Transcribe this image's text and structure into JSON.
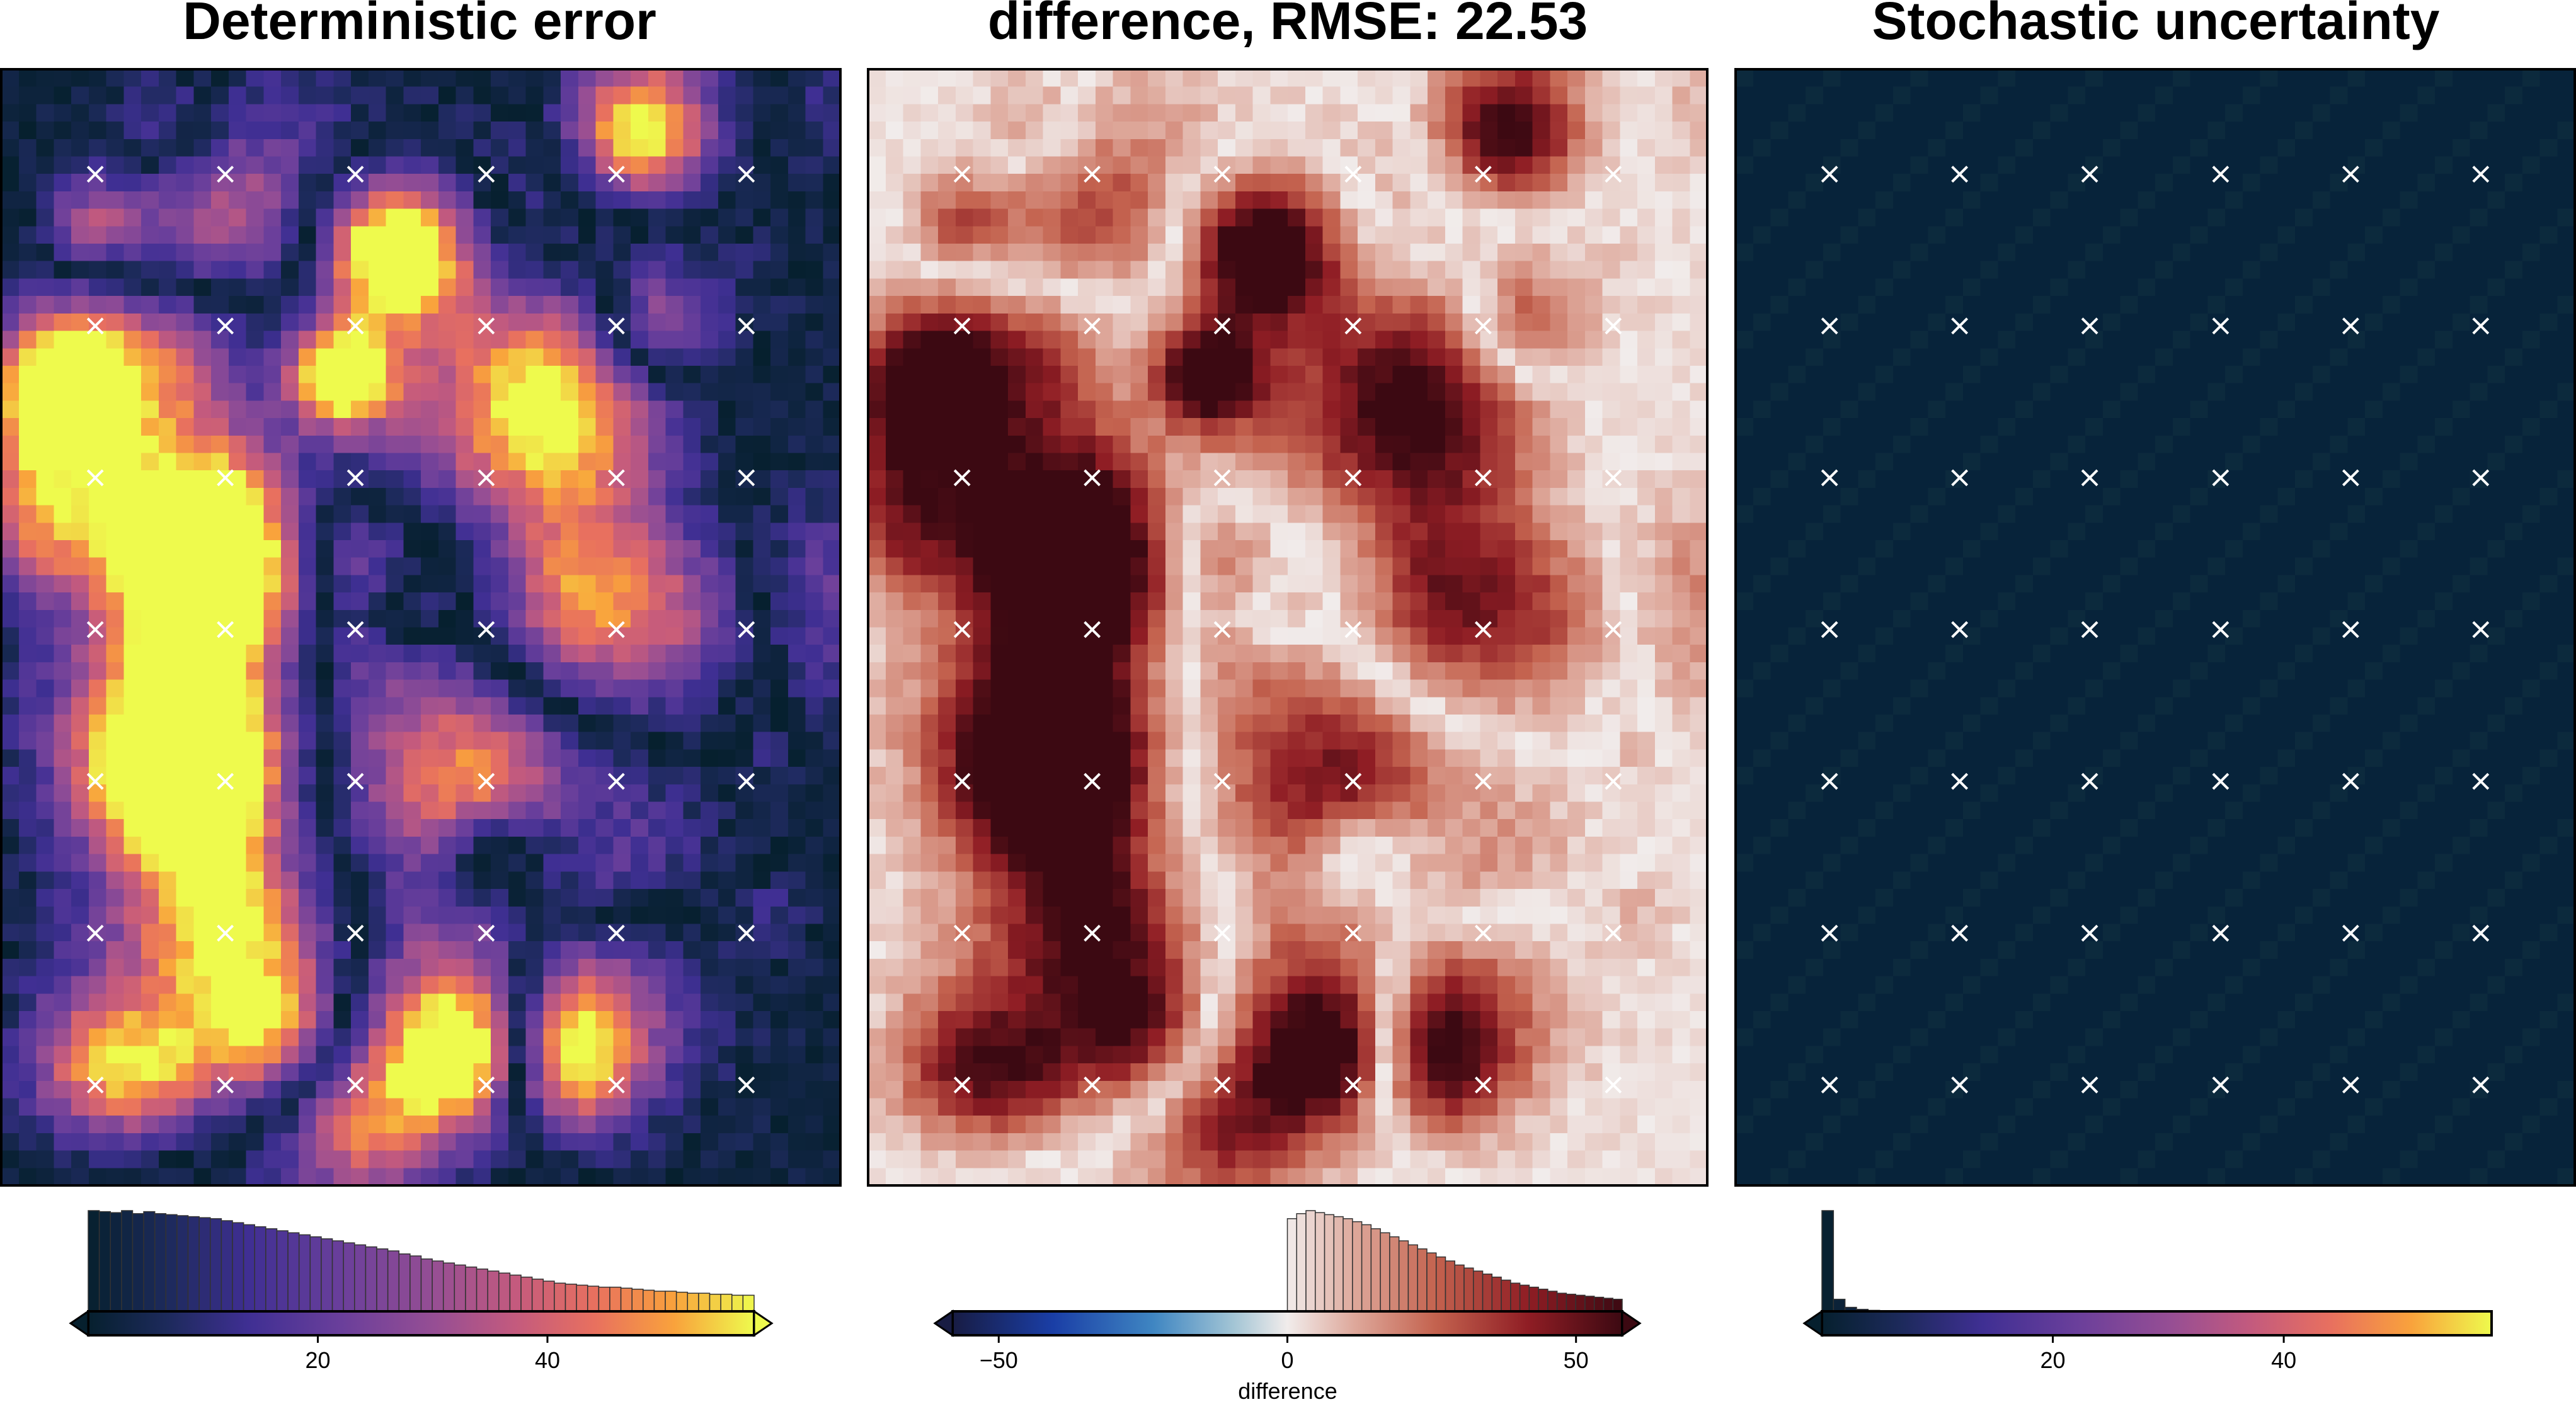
{
  "chart_data": [
    {
      "type": "heatmap",
      "title": "Deterministic error",
      "colormap": "thermal",
      "colorbar": {
        "ticks": [
          20,
          40
        ],
        "tick_labels": [
          "20",
          "40"
        ],
        "range": [
          0,
          58
        ],
        "histogram": [
          100,
          99,
          98,
          100,
          97,
          99,
          97,
          96,
          95,
          94,
          93,
          92,
          90,
          88,
          86,
          84,
          82,
          80,
          78,
          76,
          74,
          72,
          70,
          68,
          66,
          64,
          62,
          60,
          57,
          55,
          52,
          50,
          48,
          46,
          44,
          42,
          40,
          38,
          36,
          34,
          32,
          30,
          28,
          27,
          26,
          25,
          24,
          24,
          23,
          22,
          21,
          20,
          20,
          19,
          18,
          18,
          17,
          17,
          16,
          16
        ],
        "extend": "both",
        "label": ""
      },
      "markers": "x"
    },
    {
      "type": "heatmap",
      "title": "difference, RMSE: 22.53",
      "colormap": "balance",
      "colorbar": {
        "ticks": [
          -50,
          0,
          50
        ],
        "tick_labels": [
          "−50",
          "0",
          "50"
        ],
        "range": [
          -58,
          58
        ],
        "histogram": [
          92,
          97,
          100,
          98,
          96,
          94,
          92,
          89,
          86,
          82,
          78,
          74,
          70,
          66,
          62,
          58,
          54,
          50,
          46,
          43,
          40,
          37,
          34,
          31,
          28,
          26,
          24,
          22,
          20,
          18,
          17,
          16,
          15,
          14,
          13,
          12
        ],
        "hist_start": 0,
        "extend": "both",
        "label": "difference"
      },
      "markers": "x"
    },
    {
      "type": "heatmap",
      "title": "Stochastic uncertainty",
      "colormap": "thermal",
      "colorbar": {
        "ticks": [
          20,
          40
        ],
        "tick_labels": [
          "20",
          "40"
        ],
        "range": [
          0,
          58
        ],
        "histogram": [
          100,
          12,
          4,
          2,
          1
        ],
        "extend": "min",
        "label": ""
      },
      "markers": "x"
    }
  ]
}
